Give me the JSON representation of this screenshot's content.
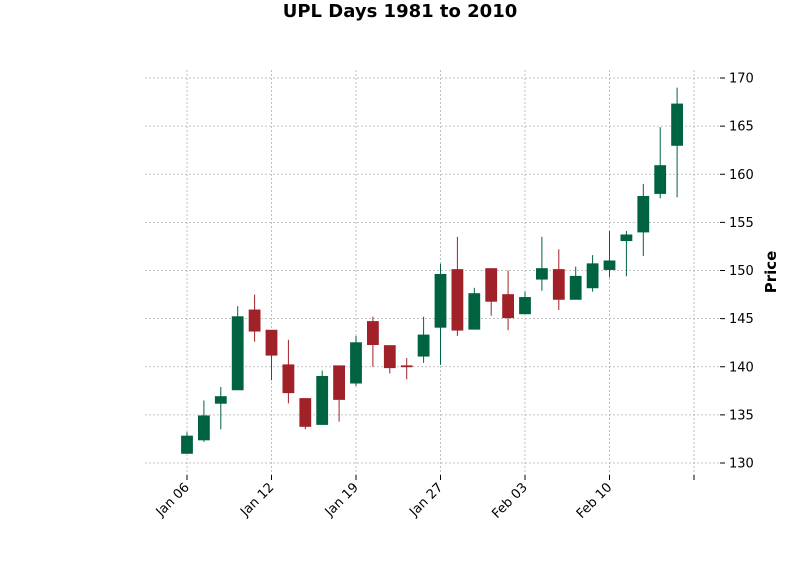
{
  "chart_data": {
    "type": "candlestick",
    "title": "UPL Days 1981 to 2010",
    "ylabel": "Price",
    "xlabel": "",
    "ylim": [
      129,
      171
    ],
    "yticks": [
      130,
      135,
      140,
      145,
      150,
      155,
      160,
      165,
      170
    ],
    "grid": true,
    "x_tick_labels": [
      "Jan 06",
      "Jan 12",
      "Jan 19",
      "Jan 27",
      "Feb 03",
      "Feb 10",
      ""
    ],
    "x_tick_positions": [
      0,
      5,
      10,
      15,
      20,
      25,
      30
    ],
    "up_color": "#006340",
    "down_color": "#A02128",
    "candles": [
      {
        "o": 131.0,
        "h": 133.2,
        "l": 131.0,
        "c": 132.8
      },
      {
        "o": 132.4,
        "h": 136.5,
        "l": 132.2,
        "c": 134.9
      },
      {
        "o": 136.2,
        "h": 137.9,
        "l": 133.5,
        "c": 136.9
      },
      {
        "o": 137.6,
        "h": 146.3,
        "l": 137.6,
        "c": 145.2
      },
      {
        "o": 145.9,
        "h": 147.5,
        "l": 142.6,
        "c": 143.7
      },
      {
        "o": 143.8,
        "h": 143.8,
        "l": 138.6,
        "c": 141.2
      },
      {
        "o": 140.2,
        "h": 142.8,
        "l": 136.2,
        "c": 137.3
      },
      {
        "o": 136.7,
        "h": 136.7,
        "l": 133.5,
        "c": 133.8
      },
      {
        "o": 134.0,
        "h": 139.6,
        "l": 134.0,
        "c": 139.0
      },
      {
        "o": 140.1,
        "h": 140.1,
        "l": 134.3,
        "c": 136.6
      },
      {
        "o": 138.3,
        "h": 143.2,
        "l": 138.0,
        "c": 142.5
      },
      {
        "o": 144.7,
        "h": 145.2,
        "l": 140.0,
        "c": 142.3
      },
      {
        "o": 142.2,
        "h": 142.2,
        "l": 139.3,
        "c": 139.9
      },
      {
        "o": 140.1,
        "h": 140.9,
        "l": 138.7,
        "c": 140.0
      },
      {
        "o": 141.1,
        "h": 145.2,
        "l": 140.4,
        "c": 143.3
      },
      {
        "o": 144.1,
        "h": 150.7,
        "l": 140.2,
        "c": 149.6
      },
      {
        "o": 150.1,
        "h": 153.5,
        "l": 143.2,
        "c": 143.8
      },
      {
        "o": 143.9,
        "h": 148.2,
        "l": 143.9,
        "c": 147.6
      },
      {
        "o": 150.2,
        "h": 150.2,
        "l": 145.3,
        "c": 146.8
      },
      {
        "o": 147.5,
        "h": 150.0,
        "l": 143.8,
        "c": 145.1
      },
      {
        "o": 145.5,
        "h": 147.8,
        "l": 145.5,
        "c": 147.2
      },
      {
        "o": 149.1,
        "h": 153.5,
        "l": 147.9,
        "c": 150.2
      },
      {
        "o": 150.1,
        "h": 152.2,
        "l": 145.9,
        "c": 147.0
      },
      {
        "o": 147.0,
        "h": 150.4,
        "l": 147.0,
        "c": 149.4
      },
      {
        "o": 148.2,
        "h": 151.6,
        "l": 147.8,
        "c": 150.7
      },
      {
        "o": 150.1,
        "h": 154.1,
        "l": 149.3,
        "c": 151.0
      },
      {
        "o": 153.1,
        "h": 154.1,
        "l": 149.4,
        "c": 153.7
      },
      {
        "o": 154.0,
        "h": 159.0,
        "l": 151.5,
        "c": 157.7
      },
      {
        "o": 158.0,
        "h": 164.9,
        "l": 157.5,
        "c": 160.9
      },
      {
        "o": 163.0,
        "h": 169.0,
        "l": 157.6,
        "c": 167.3
      }
    ]
  }
}
